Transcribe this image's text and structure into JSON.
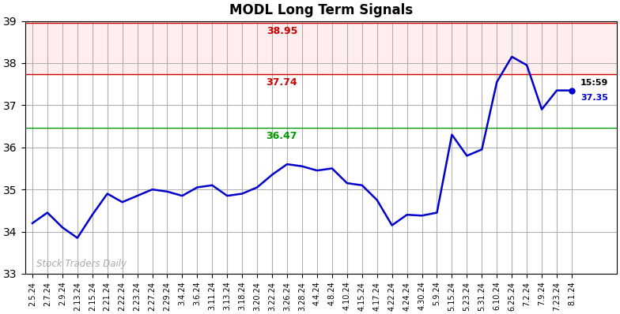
{
  "chart_data": {
    "type": "line",
    "title": "MODL Long Term Signals",
    "categories": [
      "2.5.24",
      "2.7.24",
      "2.9.24",
      "2.13.24",
      "2.15.24",
      "2.21.24",
      "2.22.24",
      "2.23.24",
      "2.27.24",
      "2.29.24",
      "3.4.24",
      "3.6.24",
      "3.11.24",
      "3.13.24",
      "3.18.24",
      "3.20.24",
      "3.22.24",
      "3.26.24",
      "3.28.24",
      "4.4.24",
      "4.8.24",
      "4.10.24",
      "4.15.24",
      "4.17.24",
      "4.22.24",
      "4.24.24",
      "4.30.24",
      "5.9.24",
      "5.15.24",
      "5.23.24",
      "5.31.24",
      "6.10.24",
      "6.25.24",
      "7.2.24",
      "7.9.24",
      "7.23.24",
      "8.1.24"
    ],
    "values": [
      34.2,
      34.45,
      34.1,
      33.85,
      34.4,
      34.9,
      34.7,
      34.85,
      35.0,
      34.95,
      34.85,
      35.05,
      35.1,
      34.85,
      34.9,
      35.05,
      35.35,
      35.6,
      35.55,
      35.45,
      35.5,
      35.15,
      35.1,
      34.75,
      34.15,
      34.4,
      34.38,
      34.45,
      36.3,
      35.8,
      35.95,
      37.55,
      38.15,
      37.95,
      36.9,
      37.35,
      37.35
    ],
    "color": "#0000cc",
    "reference_lines": [
      {
        "value": 38.95,
        "label": "38.95",
        "color": "#cc0000"
      },
      {
        "value": 37.74,
        "label": "37.74",
        "color": "#cc0000"
      },
      {
        "value": 36.47,
        "label": "36.47",
        "color": "#009900"
      }
    ],
    "band": {
      "from": 37.74,
      "to": 38.95,
      "color": "#ffeeee"
    },
    "last_point": {
      "time": "15:59",
      "price": 37.35
    },
    "watermark": "Stock Traders Daily",
    "ylim": [
      33,
      39
    ],
    "yticks": [
      33,
      34,
      35,
      36,
      37,
      38,
      39
    ],
    "grid": true
  }
}
